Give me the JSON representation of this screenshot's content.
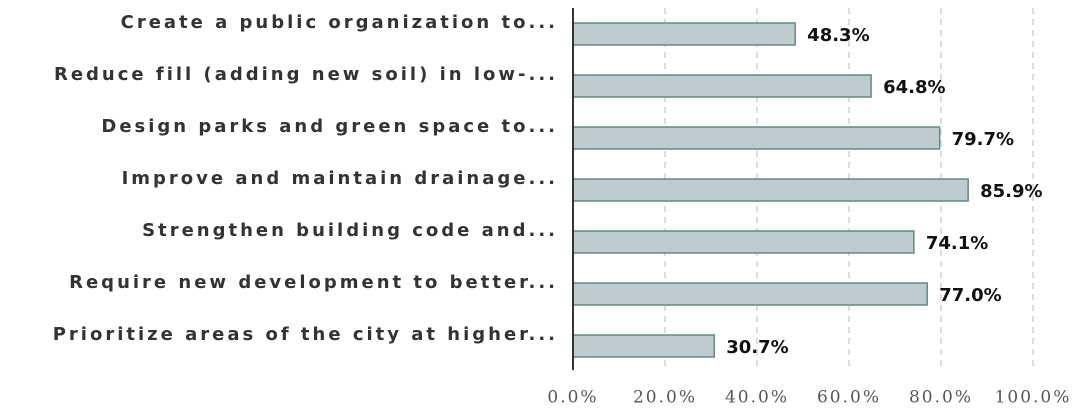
{
  "chart_data": {
    "type": "bar",
    "orientation": "horizontal",
    "categories": [
      "Create a public organization to...",
      "Reduce fill (adding new soil) in low-...",
      "Design parks and green space to...",
      "Improve and maintain drainage...",
      "Strengthen building code and...",
      "Require new development to better...",
      "Prioritize areas of the city at higher..."
    ],
    "values": [
      48.3,
      64.8,
      79.7,
      85.9,
      74.1,
      77.0,
      30.7
    ],
    "value_labels": [
      "48.3%",
      "64.8%",
      "79.7%",
      "85.9%",
      "74.1%",
      "77.0%",
      "30.7%"
    ],
    "color": "#bfcccf",
    "edge_color": "#5f8a86",
    "xlim": [
      0,
      100
    ],
    "xticks": [
      {
        "value": 0,
        "label": "0.0%"
      },
      {
        "value": 20,
        "label": "20.0%"
      },
      {
        "value": 40,
        "label": "40.0%"
      },
      {
        "value": 60,
        "label": "60.0%"
      },
      {
        "value": 80,
        "label": "80.0%"
      },
      {
        "value": 100,
        "label": "100.0%"
      }
    ],
    "grid": true
  }
}
